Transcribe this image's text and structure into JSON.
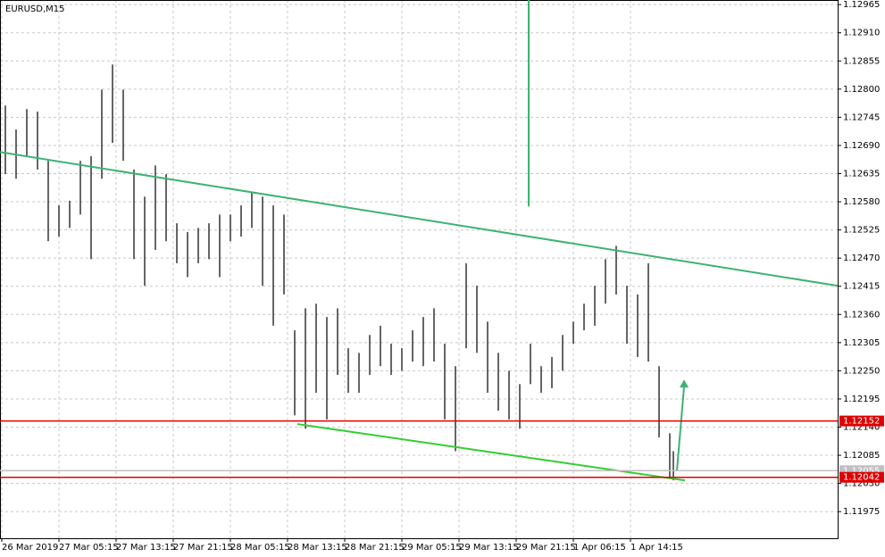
{
  "chart_data": {
    "type": "range-bar",
    "title": "EURUSD,M15",
    "x": [
      2,
      8,
      14,
      20,
      26,
      32,
      38,
      44,
      50,
      56,
      62,
      68,
      74,
      80,
      86,
      92,
      98,
      104,
      110,
      116,
      122,
      128,
      134,
      140,
      146,
      152,
      158,
      164,
      170,
      176,
      182,
      188,
      194,
      200,
      206,
      212,
      218,
      224,
      230,
      236,
      242,
      248,
      254,
      260,
      266,
      272,
      278,
      284,
      290,
      296,
      302,
      308,
      314,
      320,
      326,
      332,
      338,
      344,
      350,
      356,
      362,
      368,
      374,
      376
    ],
    "high": [
      1.12768,
      1.12721,
      1.12761,
      1.12756,
      1.1266,
      1.12573,
      1.12582,
      1.1266,
      1.12669,
      1.12799,
      1.12848,
      1.12799,
      1.12643,
      1.1259,
      1.12651,
      1.12634,
      1.12538,
      1.12521,
      1.12529,
      1.12538,
      1.12555,
      1.12555,
      1.12573,
      1.12599,
      1.1259,
      1.12573,
      1.12555,
      1.12329,
      1.12372,
      1.12381,
      1.12355,
      1.12372,
      1.12294,
      1.12285,
      1.1232,
      1.12338,
      1.12303,
      1.12294,
      1.12329,
      1.12355,
      1.12372,
      1.12303,
      1.12259,
      1.1246,
      1.12416,
      1.12346,
      1.12285,
      1.1225,
      1.12224,
      1.12303,
      1.12259,
      1.12277,
      1.1232,
      1.12346,
      1.12381,
      1.12416,
      1.12468,
      1.12494,
      1.12416,
      1.12399,
      1.1246,
      1.12259,
      1.12128,
      1.12093
    ],
    "low": [
      1.12634,
      1.12625,
      1.12669,
      1.12643,
      1.12503,
      1.12512,
      1.12529,
      1.12555,
      1.12468,
      1.12625,
      1.12695,
      1.1266,
      1.12468,
      1.12416,
      1.12486,
      1.12503,
      1.1246,
      1.12433,
      1.1246,
      1.12468,
      1.12433,
      1.12503,
      1.12512,
      1.12529,
      1.12416,
      1.12338,
      1.12399,
      1.12163,
      1.12137,
      1.12207,
      1.12155,
      1.12242,
      1.12207,
      1.12207,
      1.12242,
      1.12259,
      1.12242,
      1.1225,
      1.12268,
      1.12259,
      1.12268,
      1.12155,
      1.12093,
      1.12294,
      1.12285,
      1.12207,
      1.12172,
      1.12155,
      1.12137,
      1.12224,
      1.12207,
      1.12216,
      1.1225,
      1.12303,
      1.12329,
      1.12338,
      1.12381,
      1.12399,
      1.12303,
      1.12277,
      1.12268,
      1.1212,
      1.12041,
      1.12036
    ],
    "color": "#000000",
    "xlim": [
      -1,
      468
    ],
    "xticks": [
      {
        "value": 0,
        "label": "26 Mar 2019"
      },
      {
        "value": 32,
        "label": "27 Mar 05:15"
      },
      {
        "value": 64,
        "label": "27 Mar 13:15"
      },
      {
        "value": 96,
        "label": "27 Mar 21:15"
      },
      {
        "value": 128,
        "label": "28 Mar 05:15"
      },
      {
        "value": 160,
        "label": "28 Mar 13:15"
      },
      {
        "value": 192,
        "label": "28 Mar 21:15"
      },
      {
        "value": 224,
        "label": "29 Mar 05:15"
      },
      {
        "value": 256,
        "label": "29 Mar 13:15"
      },
      {
        "value": 288,
        "label": "29 Mar 21:15"
      },
      {
        "value": 320,
        "label": "1 Apr 06:15"
      },
      {
        "value": 352,
        "label": "1 Apr 14:15"
      }
    ],
    "ylim": [
      1.11923,
      1.12974
    ],
    "yticks": [
      1.12965,
      {
        "value": 1.1291,
        "label": "1.12910"
      },
      1.12855,
      {
        "value": 1.128,
        "label": "1.12800"
      },
      1.12745,
      {
        "value": 1.1269,
        "label": "1.12690"
      },
      1.12635,
      {
        "value": 1.1258,
        "label": "1.12580"
      },
      1.12525,
      {
        "value": 1.1247,
        "label": "1.12470"
      },
      1.12415,
      {
        "value": 1.1236,
        "label": "1.12360"
      },
      1.12305,
      {
        "value": 1.1225,
        "label": "1.12250"
      },
      1.12195,
      {
        "value": 1.1214,
        "label": "1.12140"
      },
      1.12085,
      {
        "value": 1.1203,
        "label": "1.12030"
      },
      1.11975
    ],
    "grid": true,
    "hlines": [
      {
        "value": 1.12055,
        "color": "#c0c0c0"
      },
      {
        "value": 1.12152,
        "color": "#e00000"
      },
      {
        "value": 1.12042,
        "color": "#e00000"
      }
    ],
    "trendlines": [
      {
        "x": [
          -1,
          468
        ],
        "y": [
          1.12677,
          1.12416
        ],
        "color": "#3cb371"
      },
      {
        "x": [
          165.5,
          382.5
        ],
        "y": [
          1.12146,
          1.12036
        ],
        "color": "#32cd32"
      },
      {
        "x": [
          295,
          295
        ],
        "y": [
          1.12974,
          1.12571
        ],
        "color": "#3cb371"
      }
    ],
    "arrows": [
      {
        "x": [
          378,
          382
        ],
        "y": [
          1.12055,
          1.12233
        ],
        "color": "#3cb371"
      }
    ]
  }
}
